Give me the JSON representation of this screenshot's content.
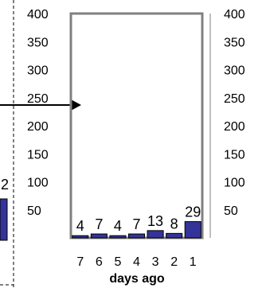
{
  "chart_data": {
    "type": "bar",
    "categories": [
      "7",
      "6",
      "5",
      "4",
      "3",
      "2",
      "1"
    ],
    "values": [
      4,
      7,
      4,
      7,
      13,
      8,
      29
    ],
    "data_labels": [
      "4",
      "7",
      "4",
      "7",
      "13",
      "8",
      "29"
    ],
    "xlabel": "days ago",
    "ylabel": "",
    "ylim": [
      0,
      400
    ],
    "y_ticks": [
      "400",
      "350",
      "300",
      "250",
      "200",
      "150",
      "100",
      "50"
    ],
    "right_y_ticks": [
      "400",
      "350",
      "300",
      "250",
      "200",
      "150",
      "100",
      "50"
    ],
    "grid": false,
    "bar_color": "#333399",
    "frame_color": "#808080"
  },
  "left_panel": {
    "partial_label": "2"
  }
}
